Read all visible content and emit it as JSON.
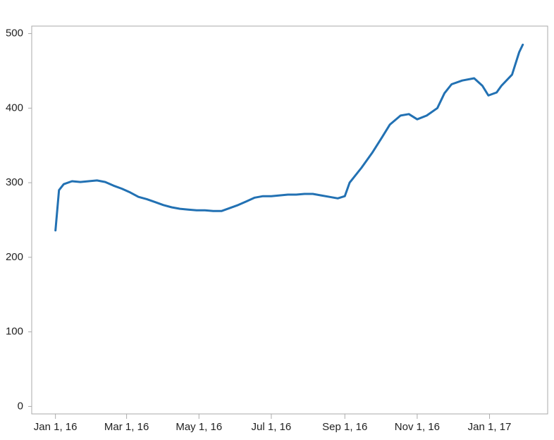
{
  "chart_data": {
    "type": "line",
    "x": [
      "2016-01-01",
      "2016-01-04",
      "2016-01-08",
      "2016-01-15",
      "2016-01-22",
      "2016-01-29",
      "2016-02-05",
      "2016-02-12",
      "2016-02-19",
      "2016-02-26",
      "2016-03-04",
      "2016-03-11",
      "2016-03-18",
      "2016-03-25",
      "2016-04-01",
      "2016-04-08",
      "2016-04-15",
      "2016-04-22",
      "2016-04-29",
      "2016-05-06",
      "2016-05-13",
      "2016-05-20",
      "2016-05-27",
      "2016-06-03",
      "2016-06-10",
      "2016-06-17",
      "2016-06-24",
      "2016-07-01",
      "2016-07-08",
      "2016-07-15",
      "2016-07-22",
      "2016-07-29",
      "2016-08-05",
      "2016-08-12",
      "2016-08-19",
      "2016-08-26",
      "2016-09-01",
      "2016-09-05",
      "2016-09-15",
      "2016-09-24",
      "2016-10-02",
      "2016-10-09",
      "2016-10-18",
      "2016-10-25",
      "2016-11-01",
      "2016-11-09",
      "2016-11-18",
      "2016-11-24",
      "2016-11-30",
      "2016-12-09",
      "2016-12-19",
      "2016-12-26",
      "2016-12-31",
      "2017-01-07",
      "2017-01-11",
      "2017-01-20",
      "2017-01-26",
      "2017-01-29"
    ],
    "values": [
      236,
      290,
      298,
      302,
      301,
      302,
      303,
      301,
      296,
      292,
      287,
      281,
      278,
      274,
      270,
      267,
      265,
      264,
      263,
      263,
      262,
      262,
      266,
      270,
      275,
      280,
      282,
      282,
      283,
      284,
      284,
      285,
      285,
      283,
      281,
      279,
      282,
      300,
      320,
      340,
      360,
      378,
      390,
      392,
      385,
      390,
      400,
      420,
      432,
      437,
      440,
      430,
      417,
      421,
      430,
      445,
      475,
      485
    ],
    "color": "#2271b3",
    "xlim": [
      "2015-12-12",
      "2017-02-19"
    ],
    "xticks": [
      {
        "value": "2016-01-01",
        "label": "Jan 1, 16"
      },
      {
        "value": "2016-03-01",
        "label": "Mar 1, 16"
      },
      {
        "value": "2016-05-01",
        "label": "May 1, 16"
      },
      {
        "value": "2016-07-01",
        "label": "Jul 1, 16"
      },
      {
        "value": "2016-09-01",
        "label": "Sep 1, 16"
      },
      {
        "value": "2016-11-01",
        "label": "Nov 1, 16"
      },
      {
        "value": "2017-01-01",
        "label": "Jan 1, 17"
      }
    ],
    "ylim": [
      -10,
      510
    ],
    "yticks": [
      0,
      100,
      200,
      300,
      400,
      500
    ]
  }
}
